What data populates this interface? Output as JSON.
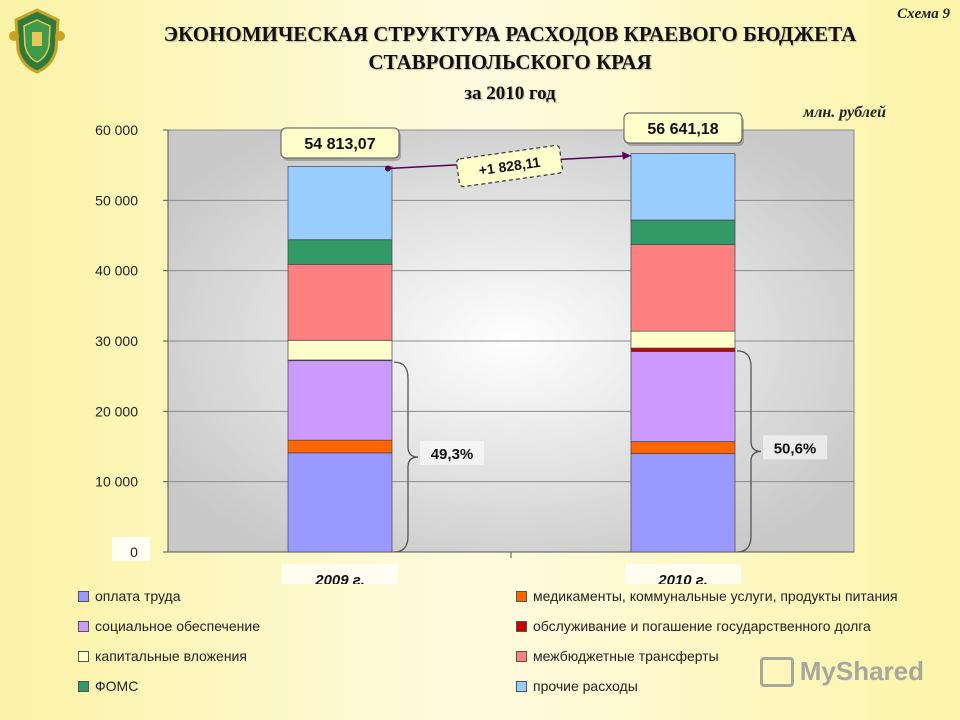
{
  "header": {
    "scheme_label": "Схема 9",
    "title_line1": "ЭКОНОМИЧЕСКАЯ СТРУКТУРА РАСХОДОВ КРАЕВОГО БЮДЖЕТА",
    "title_line2": "СТАВРОПОЛЬСКОГО КРАЯ",
    "title_line3": "за 2010 год",
    "units": "млн. рублей"
  },
  "watermark": {
    "text": "MyShared",
    "icon": "myshared-logo-icon"
  },
  "emblem": {
    "icon": "stavropol-coat-of-arms-icon"
  },
  "colors": {
    "salary": "#9999ff",
    "medicine": "#ff6600",
    "social": "#cc99ff",
    "debt": "#cc0000",
    "capital": "#ffffcc",
    "transfers": "#ff8080",
    "foms": "#339966",
    "other": "#99ccff"
  },
  "chart_data": {
    "type": "bar",
    "stacked": true,
    "categories": [
      "2009 г.",
      "2010 г."
    ],
    "totals": [
      "54 813,07",
      "56 641,18"
    ],
    "total_values": [
      54813.07,
      56641.18
    ],
    "difference_label": "+1 828,11",
    "share_labels": [
      "49,3%",
      "50,6%"
    ],
    "share_ranges": [
      [
        0,
        27000
      ],
      [
        0,
        28600
      ]
    ],
    "ylim": [
      0,
      60000
    ],
    "yticks": [
      {
        "value": 0,
        "label": "0"
      },
      {
        "value": 10000,
        "label": "10 000"
      },
      {
        "value": 20000,
        "label": "20 000"
      },
      {
        "value": 30000,
        "label": "30 000"
      },
      {
        "value": 40000,
        "label": "40 000"
      },
      {
        "value": 50000,
        "label": "50 000"
      },
      {
        "value": 60000,
        "label": "60 000"
      }
    ],
    "grid": true,
    "legend_position": "bottom",
    "series": [
      {
        "key": "salary",
        "name": "оплата труда",
        "values": [
          14100,
          14000
        ]
      },
      {
        "key": "medicine",
        "name": "медикаменты, коммунальные услуги, продукты питания",
        "values": [
          1800,
          1700
        ]
      },
      {
        "key": "social",
        "name": "социальное обеспечение",
        "values": [
          11300,
          12800
        ]
      },
      {
        "key": "debt",
        "name": "обслуживание и погашение государственного долга",
        "values": [
          100,
          500
        ]
      },
      {
        "key": "capital",
        "name": "капитальные вложения",
        "values": [
          2800,
          2400
        ]
      },
      {
        "key": "transfers",
        "name": "межбюджетные трансферты",
        "values": [
          10800,
          12300
        ]
      },
      {
        "key": "foms",
        "name": "ФОМС",
        "values": [
          3500,
          3500
        ]
      },
      {
        "key": "other",
        "name": "прочие расходы",
        "values": [
          10413.07,
          9441.18
        ]
      }
    ]
  }
}
